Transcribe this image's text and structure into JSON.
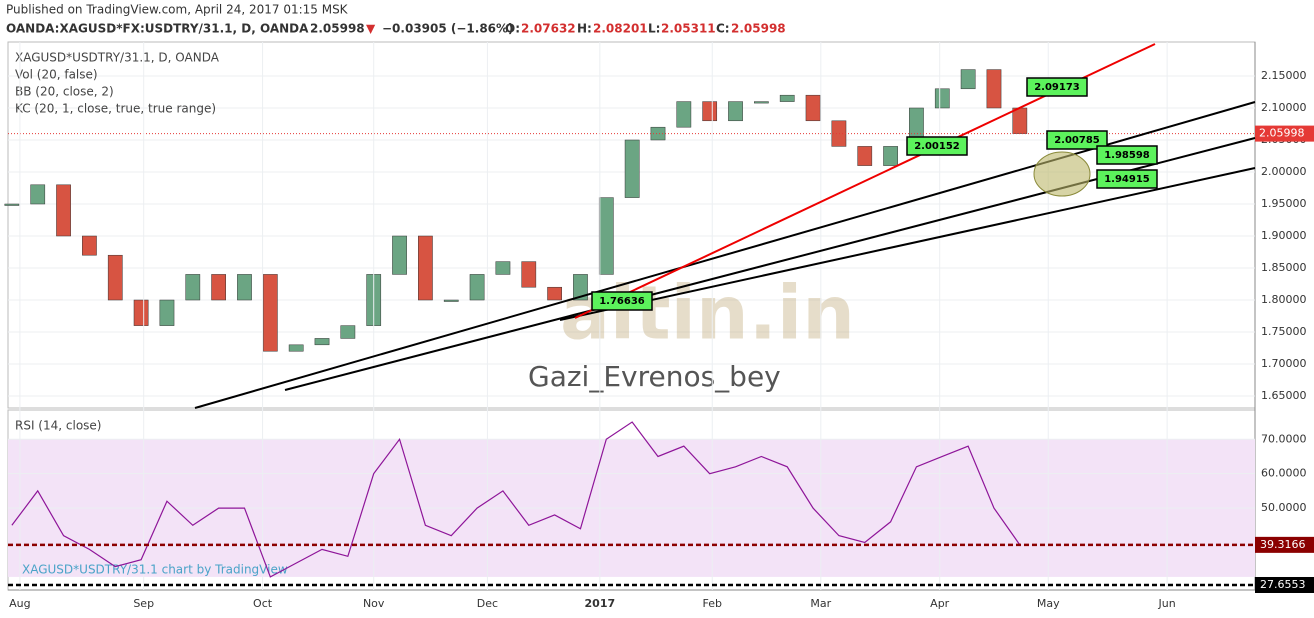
{
  "header": {
    "published": "Published on TradingView.com, April 24, 2017 01:15 MSK",
    "symbol": "OANDA:XAGUSD*FX:USDTRY/31.1, D, OANDA",
    "last": "2.05998",
    "arrow": "▼",
    "change": "−0.03905 (−1.86%)",
    "o_label": "O:",
    "o": "2.07632",
    "h_label": "H:",
    "h": "2.08201",
    "l_label": "L:",
    "l": "2.05311",
    "c_label": "C:",
    "c": "2.05998"
  },
  "chart_data": [
    {
      "type": "candlestick",
      "legend_lines": [
        "XAGUSD*USDTRY/31.1, D, OANDA",
        "Vol (20, false)",
        "BB (20, close, 2)",
        "KC (20, 1, close, true, true range)"
      ],
      "watermark": "Gazi_Evrenos_bey",
      "logo": "altin.in",
      "categories": [
        null,
        null,
        null,
        null,
        null,
        null,
        null,
        null,
        null,
        null,
        null,
        null,
        null,
        null,
        null,
        null,
        null,
        null,
        null,
        null,
        null,
        null,
        null,
        null,
        null,
        null,
        null,
        null,
        null,
        null,
        null,
        null,
        null,
        null,
        null,
        null,
        null,
        null,
        null,
        null
      ],
      "values": [
        1.95,
        1.98,
        1.9,
        1.87,
        1.8,
        1.76,
        1.8,
        1.84,
        1.8,
        1.84,
        1.72,
        1.73,
        1.74,
        1.76,
        1.84,
        1.9,
        1.8,
        1.8,
        1.84,
        1.86,
        1.82,
        1.8,
        1.84,
        1.96,
        2.05,
        2.07,
        2.11,
        2.08,
        2.11,
        2.11,
        2.12,
        2.08,
        2.04,
        2.01,
        2.04,
        2.1,
        2.13,
        2.16,
        2.1,
        2.05998
      ],
      "colors": {
        "up": "#6ba583",
        "down": "#d75442"
      },
      "xlim": [
        -0.15,
        48.1
      ],
      "ylim": [
        1.6313,
        2.2031
      ],
      "yticks": [
        {
          "value": 1.65,
          "label": "1.65000"
        },
        {
          "value": 1.7,
          "label": "1.70000"
        },
        {
          "value": 1.75,
          "label": "1.75000"
        },
        {
          "value": 1.8,
          "label": "1.80000"
        },
        {
          "value": 1.85,
          "label": "1.85000"
        },
        {
          "value": 1.9,
          "label": "1.90000"
        },
        {
          "value": 1.95,
          "label": "1.95000"
        },
        {
          "value": 2.0,
          "label": "2.00000"
        },
        {
          "value": 2.05,
          "label": "2.05000"
        },
        {
          "value": 2.1,
          "label": "2.10000"
        },
        {
          "value": 2.15,
          "label": "2.15000"
        }
      ],
      "last_price": 2.05998,
      "last_color": "#e53935",
      "annotations": [
        1.76636,
        2.00152,
        2.09173,
        2.00785,
        1.98598,
        1.94915
      ],
      "grid": true
    },
    {
      "type": "line",
      "legend_lines": [
        "RSI (14, close)"
      ],
      "footer": "XAGUSD*USDTRY/31.1 chart by TradingView",
      "values": [
        45,
        55,
        42,
        38,
        33,
        35,
        52,
        45,
        50,
        50,
        30,
        34,
        38,
        36,
        60,
        70,
        45,
        42,
        50,
        55,
        45,
        48,
        44,
        70,
        75,
        65,
        68,
        60,
        62,
        65,
        62,
        50,
        42,
        40,
        46,
        62,
        65,
        68,
        50,
        39.3166
      ],
      "color": "#8e1599",
      "band": [
        30,
        70
      ],
      "band_color": "#f3e3f7",
      "xlim": [
        -0.15,
        48.1
      ],
      "ylim": [
        26.2,
        78.5
      ],
      "yticks": [
        {
          "value": 50,
          "label": "50.0000"
        },
        {
          "value": 60,
          "label": "60.0000"
        },
        {
          "value": 70,
          "label": "70.0000"
        }
      ],
      "hlines": [
        {
          "value": 39.3166,
          "color": "#8b0000"
        },
        {
          "value": 27.6553,
          "color": "#000000"
        }
      ],
      "xticks": [
        {
          "value": 0.31,
          "label": "Aug"
        },
        {
          "value": 5.1,
          "label": "Sep"
        },
        {
          "value": 9.7,
          "label": "Oct"
        },
        {
          "value": 14.0,
          "label": "Nov"
        },
        {
          "value": 18.4,
          "label": "Dec"
        },
        {
          "value": 22.75,
          "label": "2017"
        },
        {
          "value": 27.1,
          "label": "Feb"
        },
        {
          "value": 31.3,
          "label": "Mar"
        },
        {
          "value": 35.9,
          "label": "Apr"
        },
        {
          "value": 40.1,
          "label": "May"
        },
        {
          "value": 44.7,
          "label": "Jun"
        }
      ],
      "grid": true
    }
  ]
}
